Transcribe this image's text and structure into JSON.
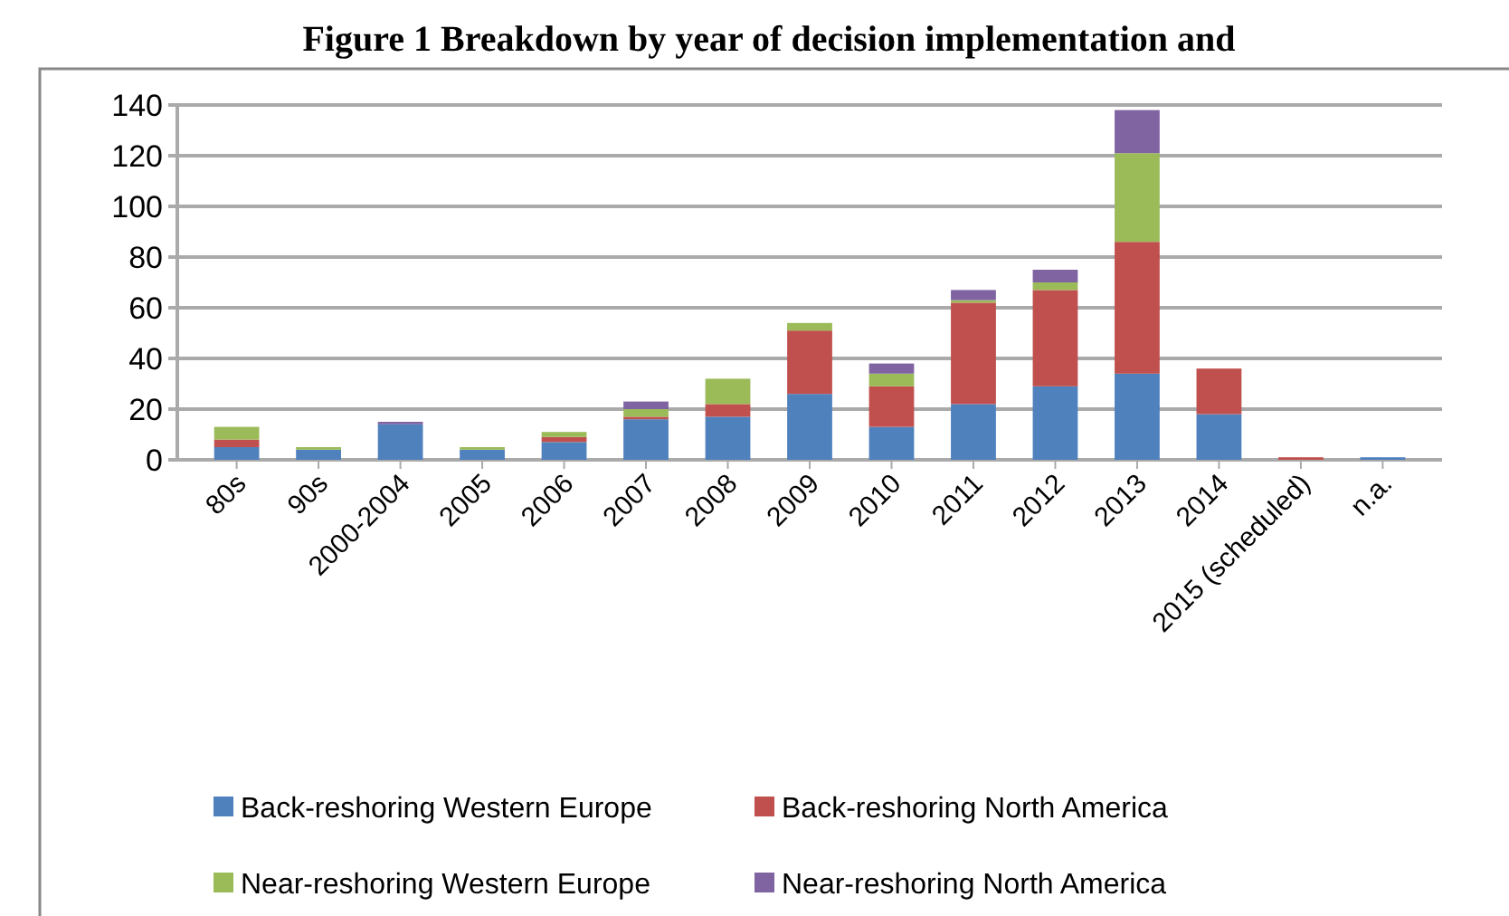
{
  "chart_data": {
    "type": "bar",
    "title": "Figure 1 Breakdown by year of decision implementation and",
    "categories": [
      "80s",
      "90s",
      "2000-2004",
      "2005",
      "2006",
      "2007",
      "2008",
      "2009",
      "2010",
      "2011",
      "2012",
      "2013",
      "2014",
      "2015 (scheduled)",
      "n.a."
    ],
    "series": [
      {
        "name": "Back-reshoring Western Europe",
        "color": "#4f81bd",
        "values": [
          5,
          4,
          14,
          4,
          7,
          16,
          17,
          26,
          13,
          22,
          29,
          34,
          18,
          0,
          1
        ]
      },
      {
        "name": "Back-reshoring North America",
        "color": "#c0504d",
        "values": [
          3,
          0,
          0,
          0,
          2,
          1,
          5,
          25,
          16,
          40,
          38,
          52,
          18,
          1,
          0
        ]
      },
      {
        "name": "Near-reshoring Western Europe",
        "color": "#9bbb59",
        "values": [
          5,
          1,
          0,
          1,
          2,
          3,
          10,
          3,
          5,
          1,
          3,
          35,
          0,
          0,
          0
        ]
      },
      {
        "name": "Near-reshoring North America",
        "color": "#8064a2",
        "values": [
          0,
          0,
          1,
          0,
          0,
          3,
          0,
          0,
          4,
          4,
          5,
          17,
          0,
          0,
          0
        ]
      }
    ],
    "stacked": true,
    "ylim": [
      0,
      140
    ],
    "yticks": [
      0,
      20,
      40,
      60,
      80,
      100,
      120,
      140
    ],
    "grid": "y",
    "legend": "bottom"
  }
}
